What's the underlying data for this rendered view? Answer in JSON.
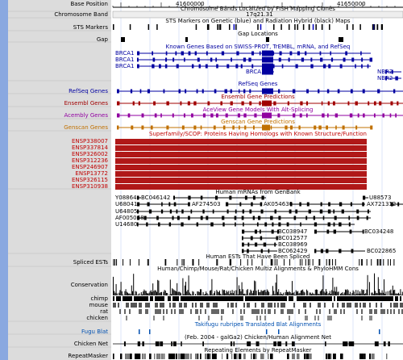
{
  "ruler": {
    "label": "Base Position",
    "ticks": [
      "41600000",
      "41650000"
    ]
  },
  "chromosome_band": {
    "title": "Chromosome Bands Localized by FISH Mapping Clones",
    "label": "Chromosome Band",
    "band": "17q21.31"
  },
  "sts": {
    "title": "STS Markers on Genetic (blue) and Radiation Hybrid (black) Maps",
    "label": "STS Markers"
  },
  "gap": {
    "title": "Gap Locations",
    "label": "Gap"
  },
  "known_genes": {
    "title": "Known Genes Based on SWISS-PROT, TrEMBL, mRNA, and RefSeq",
    "labels": [
      "BRCA1",
      "BRCA1",
      "BRCA1",
      "BRCA1",
      "NBR2",
      "NBR2"
    ]
  },
  "refseq": {
    "title": "RefSeq Genes",
    "label": "RefSeq Genes"
  },
  "ensembl": {
    "title": "Ensembl Gene Predictions",
    "label": "Ensembl Genes"
  },
  "acembly": {
    "title": "AceView Gene Models With Alt-Splicing",
    "label": "Acembly Genes"
  },
  "genscan": {
    "title": "Genscan Gene Predictions",
    "label": "Genscan Genes"
  },
  "superfamily": {
    "title": "Superfamily/SCOP: Proteins Having Homologs with Known Structure/Function",
    "labels": [
      "ENSP338007",
      "ENSP337814",
      "ENSP326002",
      "ENSP312236",
      "ENSP246907",
      "ENSP13772",
      "ENSP326115",
      "ENSP310938"
    ]
  },
  "mrna": {
    "title": "Human mRNAs from GenBank",
    "labels": [
      "Y08864",
      "BC046142",
      "U88573",
      "U68041",
      "AF274503",
      "AK054630",
      "AX721312",
      "U64805",
      "AF005068",
      "U14680",
      "BC038947",
      "BC034248",
      "BC012577",
      "BC038969",
      "BC062429",
      "BC022865"
    ]
  },
  "spliced_ests": {
    "title": "Human ESTs That Have Been Spliced",
    "label": "Spliced ESTs"
  },
  "conservation": {
    "title": "Human/Chimp/Mouse/Rat/Chicken Multiz Alignments & PhyloHMM Cons",
    "label": "Conservation",
    "species": [
      "chimp",
      "mouse",
      "rat",
      "chicken"
    ]
  },
  "fugu": {
    "title": "Takifugu rubripes Translated Blat Alignments",
    "label": "Fugu Blat"
  },
  "chicken_net": {
    "title": "(Feb. 2004 - galGa2) Chicken/Human Alignment Net",
    "label": "Chicken Net"
  },
  "repeatmasker": {
    "title": "Repeating Elements by RepeatMasker",
    "label": "RepeatMasker"
  }
}
